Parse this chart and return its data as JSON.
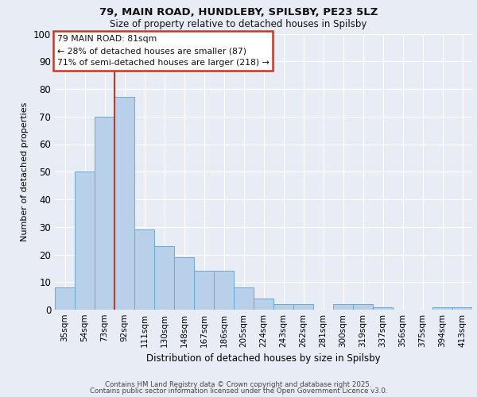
{
  "title_line1": "79, MAIN ROAD, HUNDLEBY, SPILSBY, PE23 5LZ",
  "title_line2": "Size of property relative to detached houses in Spilsby",
  "xlabel": "Distribution of detached houses by size in Spilsby",
  "ylabel": "Number of detached properties",
  "categories": [
    "35sqm",
    "54sqm",
    "73sqm",
    "92sqm",
    "111sqm",
    "130sqm",
    "148sqm",
    "167sqm",
    "186sqm",
    "205sqm",
    "224sqm",
    "243sqm",
    "262sqm",
    "281sqm",
    "300sqm",
    "319sqm",
    "337sqm",
    "356sqm",
    "375sqm",
    "394sqm",
    "413sqm"
  ],
  "values": [
    8,
    50,
    70,
    77,
    29,
    23,
    19,
    14,
    14,
    8,
    4,
    2,
    2,
    0,
    2,
    2,
    1,
    0,
    0,
    1,
    1
  ],
  "bar_color": "#b8d0ea",
  "bar_edge_color": "#6aaad4",
  "vline_x": 2.5,
  "vline_color": "#c0392b",
  "annotation_text": "79 MAIN ROAD: 81sqm\n← 28% of detached houses are smaller (87)\n71% of semi-detached houses are larger (218) →",
  "annotation_edge_color": "#c0392b",
  "ylim": [
    0,
    100
  ],
  "yticks": [
    0,
    10,
    20,
    30,
    40,
    50,
    60,
    70,
    80,
    90,
    100
  ],
  "bg_color": "#e8edf5",
  "grid_color": "#ffffff",
  "footer_line1": "Contains HM Land Registry data © Crown copyright and database right 2025.",
  "footer_line2": "Contains public sector information licensed under the Open Government Licence v3.0."
}
